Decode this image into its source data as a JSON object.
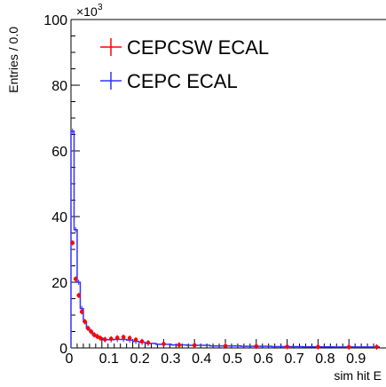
{
  "chart_data": {
    "type": "histogram",
    "title": "",
    "xlabel": "sim hit E",
    "ylabel": "Entries / 0.0",
    "y_multiplier": "×10",
    "y_multiplier_exp": "3",
    "xlim": [
      0,
      1.0
    ],
    "ylim": [
      0,
      100
    ],
    "x_ticks": [
      "0",
      "0.1",
      "0.2",
      "0.3",
      "0.4",
      "0.5",
      "0.6",
      "0.7",
      "0.8",
      "0.9"
    ],
    "y_ticks": [
      "0",
      "20",
      "40",
      "60",
      "80",
      "100"
    ],
    "legend_position": "top-left",
    "series": [
      {
        "name": "CEPCSW ECAL",
        "color": "#ff0000",
        "style": "markers with error bars",
        "x": [
          0.005,
          0.015,
          0.025,
          0.035,
          0.045,
          0.055,
          0.065,
          0.075,
          0.085,
          0.095,
          0.11,
          0.13,
          0.15,
          0.17,
          0.19,
          0.21,
          0.23,
          0.25,
          0.3,
          0.35,
          0.4,
          0.5,
          0.6,
          0.7,
          0.8,
          0.9,
          0.99
        ],
        "y": [
          32,
          21,
          16,
          11,
          8,
          6,
          5,
          4,
          3.5,
          3,
          2.6,
          2.8,
          3.1,
          3.3,
          3.0,
          2.5,
          2.0,
          1.6,
          1.2,
          0.9,
          0.8,
          0.6,
          0.5,
          0.4,
          0.35,
          0.3,
          0.3
        ]
      },
      {
        "name": "CEPC ECAL",
        "color": "#3333ff",
        "style": "step line with error bars",
        "x": [
          0.005,
          0.015,
          0.025,
          0.035,
          0.045,
          0.055,
          0.065,
          0.075,
          0.085,
          0.095,
          0.11,
          0.13,
          0.15,
          0.17,
          0.19,
          0.21,
          0.23,
          0.25,
          0.3,
          0.35,
          0.4,
          0.5,
          0.6,
          0.7,
          0.8,
          0.9,
          0.99
        ],
        "y": [
          66,
          36,
          20,
          12,
          8,
          6,
          5,
          4,
          3.5,
          3,
          2.5,
          2.5,
          2.6,
          2.6,
          2.4,
          2.0,
          1.7,
          1.4,
          1.1,
          0.9,
          0.8,
          0.6,
          0.5,
          0.4,
          0.35,
          0.3,
          0.3
        ]
      }
    ]
  }
}
